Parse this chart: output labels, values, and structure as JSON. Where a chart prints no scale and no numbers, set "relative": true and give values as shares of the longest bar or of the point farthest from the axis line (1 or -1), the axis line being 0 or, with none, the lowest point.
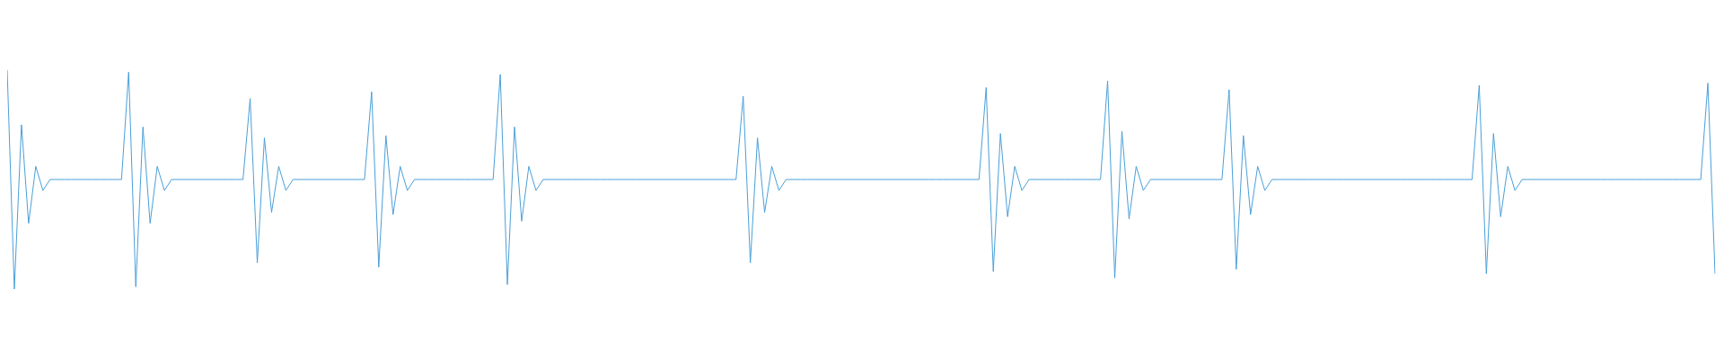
{
  "chart_data": {
    "type": "line",
    "relative": true,
    "color": "#4a9fd8",
    "categories": [
      null,
      null,
      null,
      null,
      null,
      null,
      null,
      null,
      null,
      null,
      null,
      null,
      null,
      null,
      null,
      null,
      null,
      null,
      null,
      null,
      null,
      null,
      null,
      null,
      null,
      null,
      null,
      null,
      null,
      null,
      null,
      null,
      null,
      null,
      null,
      null,
      null,
      null,
      null,
      null,
      null,
      null,
      null,
      null,
      null,
      null,
      null,
      null,
      null,
      null,
      null,
      null,
      null,
      null,
      null,
      null,
      null,
      null,
      null,
      null,
      null,
      null,
      null,
      null,
      null,
      null,
      null,
      null,
      null,
      null,
      null,
      null,
      null,
      null,
      null,
      null,
      null,
      null,
      null,
      null,
      null,
      null,
      null,
      null,
      null,
      null,
      null,
      null,
      null,
      null,
      null,
      null,
      null,
      null,
      null,
      null,
      null,
      null,
      null,
      null,
      null,
      null,
      null,
      null,
      null,
      null,
      null,
      null,
      null,
      null,
      null,
      null,
      null,
      null,
      null,
      null,
      null,
      null,
      null,
      null,
      null,
      null,
      null,
      null,
      null,
      null,
      null,
      null,
      null,
      null,
      null,
      null,
      null,
      null,
      null,
      null,
      null,
      null,
      null,
      null,
      null,
      null,
      null,
      null,
      null,
      null,
      null,
      null,
      null,
      null,
      null,
      null,
      null,
      null,
      null,
      null,
      null,
      null,
      null,
      null,
      null,
      null,
      null,
      null,
      null,
      null,
      null,
      null,
      null,
      null,
      null,
      null,
      null,
      null,
      null,
      null,
      null,
      null,
      null,
      null,
      null,
      null,
      null,
      null,
      null,
      null,
      null,
      null,
      null,
      null,
      null,
      null,
      null,
      null,
      null,
      null,
      null,
      null,
      null,
      null,
      null,
      null,
      null,
      null,
      null,
      null,
      null,
      null,
      null,
      null,
      null,
      null,
      null,
      null,
      null,
      null,
      null,
      null,
      null,
      null,
      null,
      null,
      null,
      null,
      null,
      null,
      null,
      null,
      null,
      null,
      null,
      null,
      null,
      null,
      null,
      null,
      null,
      null,
      null,
      null
    ],
    "values": [
      1.0,
      0.0,
      0.75,
      0.3,
      0.56,
      0.45,
      0.5,
      0.5,
      0.5,
      0.5,
      0.5,
      0.5,
      0.5,
      0.5,
      0.5,
      0.5,
      0.5,
      0.99,
      0.01,
      0.74,
      0.3,
      0.56,
      0.45,
      0.5,
      0.5,
      0.5,
      0.5,
      0.5,
      0.5,
      0.5,
      0.5,
      0.5,
      0.5,
      0.5,
      0.87,
      0.12,
      0.69,
      0.35,
      0.56,
      0.45,
      0.5,
      0.5,
      0.5,
      0.5,
      0.5,
      0.5,
      0.5,
      0.5,
      0.5,
      0.5,
      0.5,
      0.9,
      0.1,
      0.7,
      0.34,
      0.56,
      0.45,
      0.5,
      0.5,
      0.5,
      0.5,
      0.5,
      0.5,
      0.5,
      0.5,
      0.5,
      0.5,
      0.5,
      0.5,
      0.98,
      0.02,
      0.74,
      0.31,
      0.56,
      0.45,
      0.5,
      0.5,
      0.5,
      0.5,
      0.5,
      0.5,
      0.5,
      0.5,
      0.5,
      0.5,
      0.5,
      0.5,
      0.5,
      0.5,
      0.5,
      0.5,
      0.5,
      0.5,
      0.5,
      0.5,
      0.5,
      0.5,
      0.5,
      0.5,
      0.5,
      0.5,
      0.5,
      0.5,
      0.88,
      0.12,
      0.69,
      0.35,
      0.56,
      0.45,
      0.5,
      0.5,
      0.5,
      0.5,
      0.5,
      0.5,
      0.5,
      0.5,
      0.5,
      0.5,
      0.5,
      0.5,
      0.5,
      0.5,
      0.5,
      0.5,
      0.5,
      0.5,
      0.5,
      0.5,
      0.5,
      0.5,
      0.5,
      0.5,
      0.5,
      0.5,
      0.5,
      0.5,
      0.92,
      0.08,
      0.71,
      0.33,
      0.56,
      0.45,
      0.5,
      0.5,
      0.5,
      0.5,
      0.5,
      0.5,
      0.5,
      0.5,
      0.5,
      0.5,
      0.5,
      0.95,
      0.05,
      0.72,
      0.32,
      0.56,
      0.45,
      0.5,
      0.5,
      0.5,
      0.5,
      0.5,
      0.5,
      0.5,
      0.5,
      0.5,
      0.5,
      0.5,
      0.91,
      0.09,
      0.7,
      0.34,
      0.56,
      0.45,
      0.5,
      0.5,
      0.5,
      0.5,
      0.5,
      0.5,
      0.5,
      0.5,
      0.5,
      0.5,
      0.5,
      0.5,
      0.5,
      0.5,
      0.5,
      0.5,
      0.5,
      0.5,
      0.5,
      0.5,
      0.5,
      0.5,
      0.5,
      0.5,
      0.5,
      0.5,
      0.5,
      0.5,
      0.5,
      0.93,
      0.07,
      0.71,
      0.33,
      0.56,
      0.45,
      0.5,
      0.5,
      0.5,
      0.5,
      0.5,
      0.5,
      0.5,
      0.5,
      0.5,
      0.5,
      0.5,
      0.5,
      0.5,
      0.5,
      0.5,
      0.5,
      0.5,
      0.5,
      0.5,
      0.5,
      0.5,
      0.5,
      0.5,
      0.5,
      0.5,
      0.5,
      0.94,
      0.07
    ]
  }
}
